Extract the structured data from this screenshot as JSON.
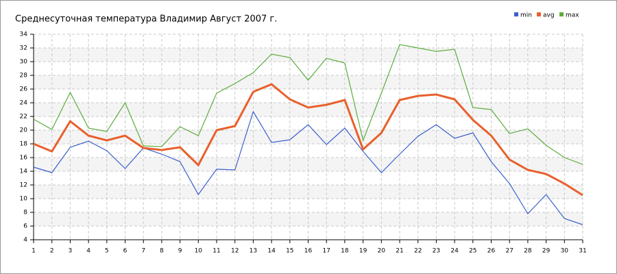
{
  "chart_data": {
    "type": "line",
    "title": "Среднесуточная температура Владимир  Август 2007 г.",
    "x": [
      1,
      2,
      3,
      4,
      5,
      6,
      7,
      8,
      9,
      10,
      11,
      12,
      13,
      14,
      15,
      16,
      17,
      18,
      19,
      20,
      21,
      22,
      23,
      24,
      25,
      26,
      27,
      28,
      29,
      30,
      31
    ],
    "xlim": [
      1,
      31
    ],
    "xticks": [
      1,
      2,
      3,
      4,
      5,
      6,
      7,
      8,
      9,
      10,
      11,
      12,
      13,
      14,
      15,
      16,
      17,
      18,
      19,
      20,
      21,
      22,
      23,
      24,
      25,
      26,
      27,
      28,
      29,
      30,
      31
    ],
    "ylim": [
      4,
      34
    ],
    "yticks": [
      4,
      6,
      8,
      10,
      12,
      14,
      16,
      18,
      20,
      22,
      24,
      26,
      28,
      30,
      32,
      34
    ],
    "grid": true,
    "legend": "top-right",
    "series": [
      {
        "name": "min",
        "color": "#3a5fcd",
        "values": [
          14.6,
          13.8,
          17.5,
          18.4,
          17.0,
          14.4,
          17.4,
          16.5,
          15.4,
          10.6,
          14.3,
          14.2,
          22.7,
          18.2,
          18.6,
          20.8,
          17.9,
          20.3,
          16.9,
          13.8,
          16.5,
          19.1,
          20.8,
          18.8,
          19.6,
          15.4,
          12.2,
          7.8,
          10.6,
          7.1,
          6.2
        ]
      },
      {
        "name": "avg",
        "color": "#e8602c",
        "values": [
          18.0,
          16.9,
          21.3,
          19.2,
          18.5,
          19.2,
          17.4,
          17.1,
          17.5,
          14.9,
          20.0,
          20.6,
          25.6,
          26.7,
          24.5,
          23.3,
          23.7,
          24.4,
          17.2,
          19.6,
          24.4,
          25.0,
          25.2,
          24.5,
          21.5,
          19.2,
          15.7,
          14.2,
          13.6,
          12.2,
          10.5
        ]
      },
      {
        "name": "max",
        "color": "#5aad3c",
        "values": [
          21.6,
          20.1,
          25.5,
          20.3,
          19.8,
          24.0,
          17.7,
          17.6,
          20.5,
          19.2,
          25.4,
          26.8,
          28.4,
          31.1,
          30.6,
          27.3,
          30.5,
          29.8,
          18.5,
          25.4,
          32.5,
          32.0,
          31.5,
          31.8,
          23.3,
          23.0,
          19.5,
          20.2,
          17.8,
          16.0,
          15.0
        ]
      }
    ]
  }
}
